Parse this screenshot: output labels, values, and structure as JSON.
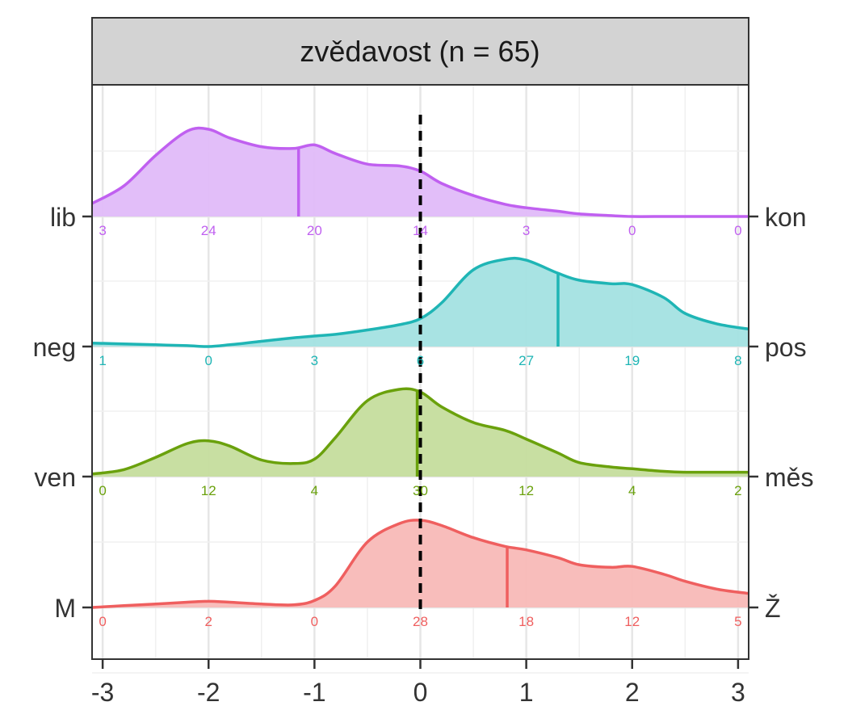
{
  "chart_data": {
    "type": "ridgeline-density",
    "title": "zvědavost (n = 65)",
    "xlabel": "",
    "ylabel": "",
    "xlim": [
      -3.1,
      3.1
    ],
    "x_ticks": [
      -3,
      -2,
      -1,
      0,
      1,
      2,
      3
    ],
    "x_tick_labels": [
      "-3",
      "-2",
      "-1",
      "0",
      "1",
      "2",
      "3"
    ],
    "reference_line_x": 0,
    "grid": true,
    "legend": "none",
    "count_positions": [
      -3,
      -2,
      -1,
      0,
      1,
      2,
      3
    ],
    "density_x": [
      -3.1,
      -2.8,
      -2.5,
      -2.2,
      -2.0,
      -1.8,
      -1.5,
      -1.2,
      -1.0,
      -0.8,
      -0.5,
      -0.2,
      0.0,
      0.2,
      0.5,
      0.8,
      1.0,
      1.3,
      1.5,
      1.8,
      2.0,
      2.3,
      2.5,
      2.8,
      3.1
    ],
    "series": [
      {
        "left_label": "lib",
        "right_label": "kon",
        "color": "#c060f0",
        "fill": "#e0baf9",
        "mean": -1.15,
        "counts": [
          "3",
          "24",
          "20",
          "14",
          "3",
          "0",
          "0"
        ],
        "density": [
          0.15,
          0.35,
          0.7,
          0.98,
          1.0,
          0.9,
          0.8,
          0.78,
          0.82,
          0.72,
          0.6,
          0.58,
          0.52,
          0.38,
          0.24,
          0.14,
          0.1,
          0.06,
          0.03,
          0.01,
          0.0,
          0.0,
          0.0,
          0.0,
          0.0
        ]
      },
      {
        "left_label": "neg",
        "right_label": "pos",
        "color": "#1fb5b5",
        "fill": "#a3e1e1",
        "mean": 1.3,
        "counts": [
          "1",
          "0",
          "3",
          "6",
          "27",
          "19",
          "8"
        ],
        "density": [
          0.04,
          0.03,
          0.02,
          0.01,
          0.0,
          0.02,
          0.06,
          0.1,
          0.12,
          0.14,
          0.19,
          0.25,
          0.32,
          0.5,
          0.88,
          1.0,
          0.99,
          0.84,
          0.76,
          0.72,
          0.71,
          0.56,
          0.38,
          0.26,
          0.2
        ]
      },
      {
        "left_label": "ven",
        "right_label": "měs",
        "color": "#6aa10c",
        "fill": "#c5dd9d",
        "mean": -0.03,
        "counts": [
          "0",
          "12",
          "4",
          "30",
          "12",
          "4",
          "2"
        ],
        "density": [
          0.03,
          0.08,
          0.22,
          0.38,
          0.41,
          0.35,
          0.19,
          0.15,
          0.2,
          0.45,
          0.87,
          1.0,
          0.97,
          0.8,
          0.62,
          0.53,
          0.43,
          0.27,
          0.16,
          0.11,
          0.09,
          0.06,
          0.05,
          0.05,
          0.05
        ]
      },
      {
        "left_label": "M",
        "right_label": "Ž",
        "color": "#ef5f5f",
        "fill": "#f8b9b7",
        "mean": 0.82,
        "counts": [
          "0",
          "2",
          "0",
          "28",
          "18",
          "12",
          "5"
        ],
        "density": [
          0.0,
          0.02,
          0.04,
          0.06,
          0.07,
          0.06,
          0.04,
          0.03,
          0.08,
          0.25,
          0.75,
          0.96,
          1.0,
          0.94,
          0.8,
          0.7,
          0.66,
          0.57,
          0.49,
          0.46,
          0.47,
          0.38,
          0.3,
          0.21,
          0.16
        ]
      }
    ]
  }
}
